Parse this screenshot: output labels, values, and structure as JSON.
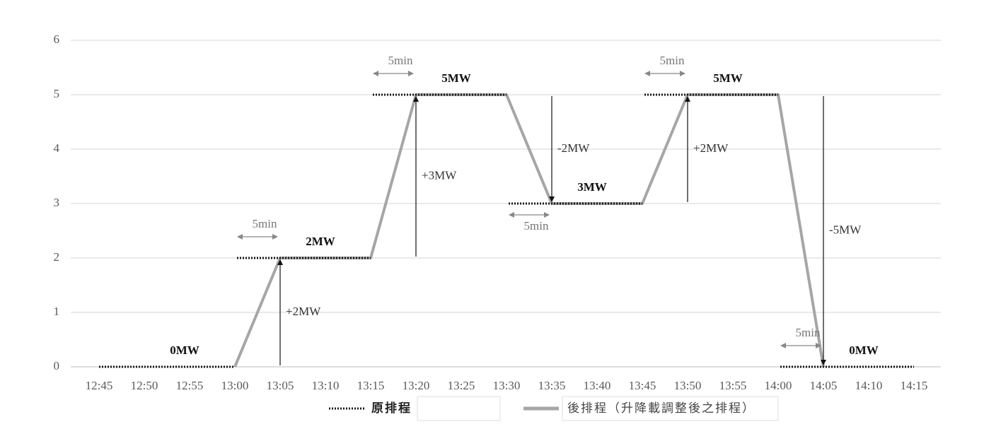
{
  "chart_data": {
    "type": "line",
    "categories": [
      "12:45",
      "12:50",
      "12:55",
      "13:00",
      "13:05",
      "13:10",
      "13:15",
      "13:20",
      "13:25",
      "13:30",
      "13:35",
      "13:40",
      "13:45",
      "13:50",
      "13:55",
      "14:00",
      "14:05",
      "14:10",
      "14:15"
    ],
    "ylim": [
      0,
      6
    ],
    "yticks": [
      0,
      1,
      2,
      3,
      4,
      5,
      6
    ],
    "grid": true,
    "series": [
      {
        "name": "原排程",
        "color": "#1a1a1a",
        "style": "dotted",
        "x": [
          "12:45",
          "13:00",
          "13:00",
          "13:15",
          "13:15",
          "13:30",
          "13:30",
          "13:45",
          "13:45",
          "14:00",
          "14:00",
          "14:15"
        ],
        "values": [
          0,
          0,
          2,
          2,
          5,
          5,
          3,
          3,
          5,
          5,
          0,
          0
        ]
      },
      {
        "name": "後排程（升降載調整後之排程）",
        "color": "#a6a6a6",
        "style": "solid",
        "x": [
          "13:00",
          "13:05",
          "13:15",
          "13:20",
          "13:30",
          "13:35",
          "13:45",
          "13:50",
          "14:00",
          "14:05"
        ],
        "values": [
          0,
          2,
          2,
          5,
          5,
          3,
          3,
          5,
          5,
          0
        ]
      }
    ],
    "level_labels": [
      "0MW",
      "2MW",
      "5MW",
      "3MW",
      "5MW",
      "0MW"
    ],
    "change_labels": [
      null,
      "+2MW",
      "+3MW",
      "-2MW",
      "+2MW",
      "-5MW"
    ],
    "shift_labels": [
      null,
      "5min",
      "5min",
      "5min",
      "5min",
      "5min"
    ]
  }
}
